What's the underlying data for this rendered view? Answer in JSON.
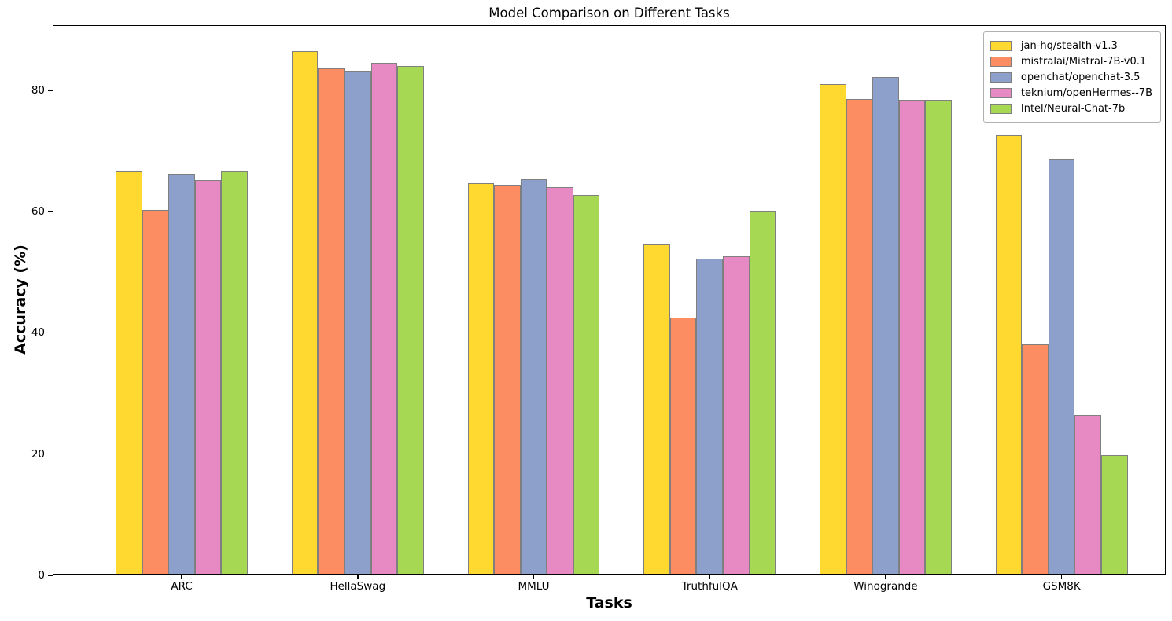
{
  "chart_data": {
    "type": "bar",
    "title": "Model Comparison on Different Tasks",
    "xlabel": "Tasks",
    "ylabel": "Accuracy (%)",
    "categories": [
      "ARC",
      "HellaSwag",
      "MMLU",
      "TruthfulQA",
      "Winogrande",
      "GSM8K"
    ],
    "series": [
      {
        "name": "jan-hq/stealth-v1.3",
        "color": "#FFD92F",
        "values": [
          66.4,
          86.2,
          64.4,
          54.3,
          80.8,
          72.3
        ]
      },
      {
        "name": "mistralai/Mistral-7B-v0.1",
        "color": "#FC8D62",
        "values": [
          60.0,
          83.3,
          64.2,
          42.3,
          78.3,
          37.9
        ]
      },
      {
        "name": "openchat/openchat-3.5",
        "color": "#8DA0CB",
        "values": [
          66.0,
          83.0,
          65.1,
          52.0,
          81.9,
          68.4
        ]
      },
      {
        "name": "teknium/openHermes--7B",
        "color": "#E78AC3",
        "values": [
          65.0,
          84.2,
          63.8,
          52.4,
          78.1,
          26.2
        ]
      },
      {
        "name": "Intel/Neural-Chat-7b",
        "color": "#A6D854",
        "values": [
          66.3,
          83.7,
          62.5,
          59.7,
          78.2,
          19.6
        ]
      }
    ],
    "yticks": [
      0,
      20,
      40,
      60,
      80
    ],
    "ylim": [
      0,
      90.6
    ],
    "bar_width": 0.15,
    "bar_edge_color": "#7f7f7f",
    "legend_position": "upper right",
    "grid": false
  }
}
